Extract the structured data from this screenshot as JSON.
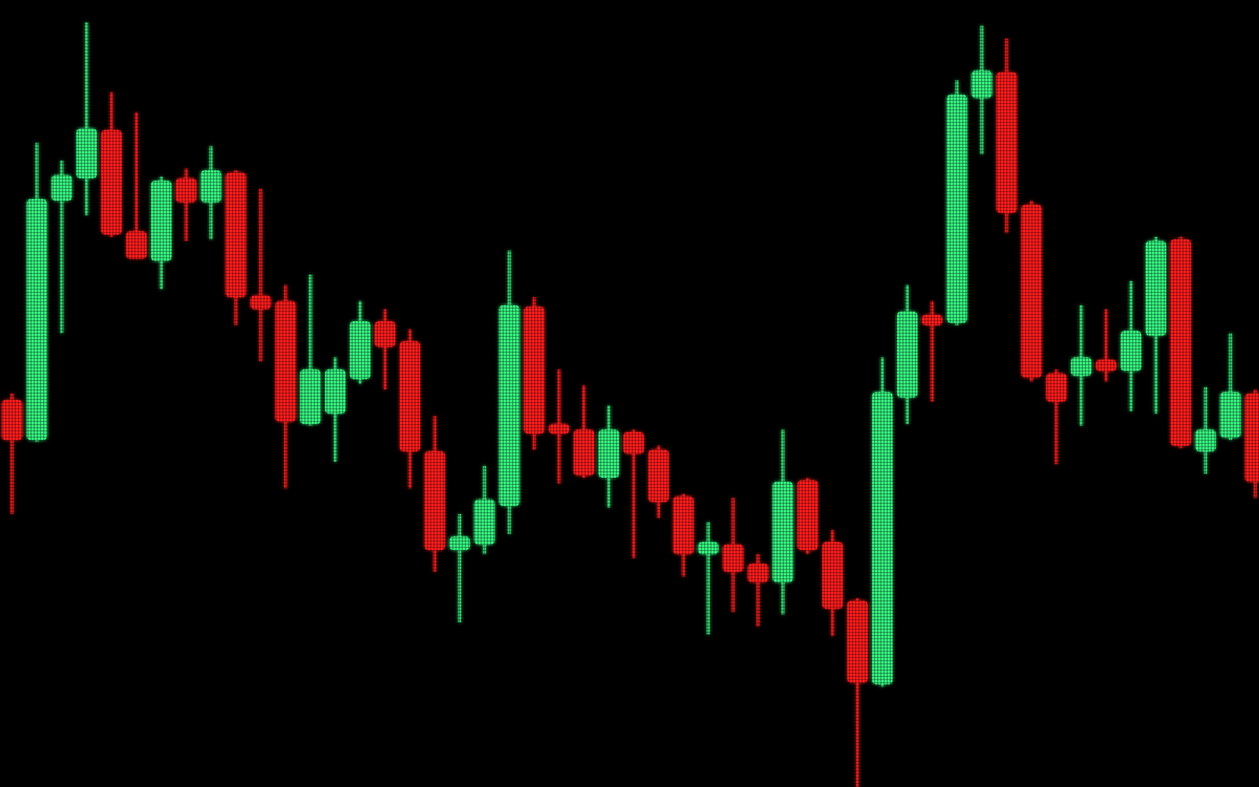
{
  "chart_data": {
    "type": "candlestick",
    "up_color": "#35f07e",
    "down_color": "#ff1f1f",
    "ylim": [
      0,
      980
    ],
    "open": [
      482,
      432,
      730,
      758,
      818,
      692,
      655,
      758,
      728,
      765,
      612,
      605,
      452,
      465,
      508,
      580,
      555,
      418,
      295,
      302,
      350,
      598,
      452,
      445,
      385,
      442,
      420,
      362,
      290,
      302,
      278,
      255,
      382,
      305,
      232,
      128,
      485,
      588,
      578,
      858,
      890,
      725,
      515,
      512,
      532,
      518,
      562,
      682,
      418,
      435,
      490
    ],
    "high": [
      490,
      802,
      780,
      952,
      865,
      840,
      760,
      770,
      798,
      768,
      745,
      625,
      638,
      535,
      605,
      595,
      570,
      462,
      340,
      400,
      668,
      610,
      520,
      500,
      475,
      445,
      425,
      365,
      330,
      360,
      290,
      445,
      385,
      320,
      235,
      535,
      625,
      605,
      880,
      948,
      932,
      730,
      520,
      600,
      595,
      630,
      685,
      685,
      498,
      565,
      495
    ],
    "low": [
      340,
      430,
      565,
      712,
      685,
      658,
      620,
      680,
      682,
      575,
      530,
      372,
      450,
      405,
      502,
      495,
      372,
      268,
      205,
      290,
      315,
      420,
      378,
      385,
      348,
      285,
      335,
      262,
      190,
      218,
      200,
      215,
      290,
      188,
      0,
      125,
      452,
      480,
      575,
      788,
      690,
      505,
      402,
      450,
      505,
      468,
      465,
      422,
      390,
      432,
      360
    ],
    "close": [
      432,
      732,
      762,
      820,
      688,
      658,
      755,
      728,
      768,
      610,
      595,
      455,
      520,
      520,
      580,
      548,
      418,
      295,
      312,
      358,
      600,
      440,
      440,
      388,
      445,
      415,
      355,
      290,
      305,
      268,
      255,
      380,
      295,
      222,
      130,
      492,
      592,
      575,
      862,
      892,
      715,
      510,
      480,
      535,
      518,
      568,
      680,
      425,
      445,
      492,
      380
    ]
  }
}
